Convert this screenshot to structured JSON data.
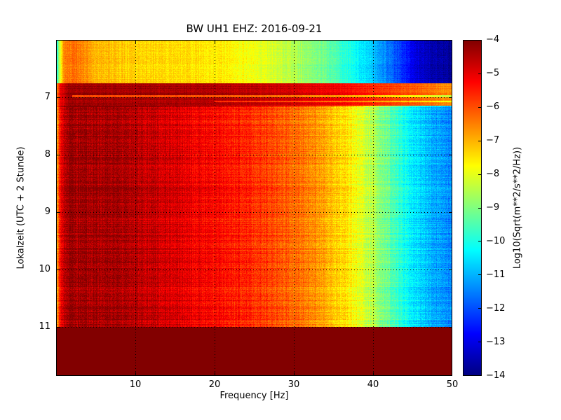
{
  "chart_data": {
    "type": "heatmap",
    "subtype": "seismic-spectrogram",
    "title": "BW UH1 EHZ: 2016-09-21",
    "xlabel": "Frequency [Hz]",
    "ylabel": "Lokalzeit (UTC + 2 Stunde)",
    "x_range": [
      0,
      50
    ],
    "x_ticks": [
      10,
      20,
      30,
      40,
      50
    ],
    "y_range": [
      6.0,
      11.85
    ],
    "y_ticks": [
      7,
      8,
      9,
      10,
      11
    ],
    "time_increases_downward": true,
    "grid_style": "dotted",
    "colormap": "jet",
    "colorbar": {
      "label": "Log10(Sqrt(m**2/s**2/Hz))",
      "min": -14,
      "max": -4,
      "ticks": [
        -4,
        -5,
        -6,
        -7,
        -8,
        -9,
        -10,
        -11,
        -12,
        -13,
        -14
      ]
    },
    "segments": [
      {
        "name": "pre-event-quiet",
        "t_start": 6.0,
        "t_end": 6.76,
        "psd_profile": [
          [
            0,
            -10.5
          ],
          [
            0.4,
            -8.5
          ],
          [
            1,
            -6.5
          ],
          [
            2.5,
            -6.3
          ],
          [
            5,
            -7.0
          ],
          [
            9,
            -7.3
          ],
          [
            15,
            -7.4
          ],
          [
            21,
            -7.6
          ],
          [
            26,
            -8.0
          ],
          [
            30,
            -8.5
          ],
          [
            34,
            -9.2
          ],
          [
            37,
            -10.0
          ],
          [
            40,
            -10.8
          ],
          [
            43,
            -12.0
          ],
          [
            45,
            -12.9
          ],
          [
            47,
            -13.5
          ],
          [
            50,
            -13.8
          ]
        ],
        "noise": {
          "row": 0.12,
          "col": 0.18,
          "px": 0.22
        }
      },
      {
        "name": "event-band",
        "t_start": 6.76,
        "t_end": 7.14,
        "psd_profile": [
          [
            0,
            -7.0
          ],
          [
            0.5,
            -5.2
          ],
          [
            1.5,
            -4.3
          ],
          [
            12,
            -4.35
          ],
          [
            22,
            -4.5
          ],
          [
            30,
            -4.8
          ],
          [
            36,
            -5.2
          ],
          [
            41,
            -5.7
          ],
          [
            46,
            -6.2
          ],
          [
            50,
            -6.7
          ]
        ],
        "noise": {
          "row": 0.18,
          "col": 0.12,
          "px": 0.18
        }
      },
      {
        "name": "main-daytime",
        "t_start": 7.14,
        "t_end": 11.0,
        "psd_profile": [
          [
            0,
            -7.5
          ],
          [
            0.3,
            -6.0
          ],
          [
            0.8,
            -4.8
          ],
          [
            1.5,
            -4.3
          ],
          [
            7,
            -4.35
          ],
          [
            11,
            -4.6
          ],
          [
            15,
            -4.9
          ],
          [
            19,
            -5.2
          ],
          [
            23,
            -5.5
          ],
          [
            27,
            -5.9
          ],
          [
            31,
            -6.4
          ],
          [
            34,
            -6.9
          ],
          [
            37,
            -7.6
          ],
          [
            40,
            -8.5
          ],
          [
            42,
            -9.3
          ],
          [
            44,
            -10.1
          ],
          [
            46,
            -10.7
          ],
          [
            48,
            -11.1
          ],
          [
            50,
            -11.5
          ]
        ],
        "noise": {
          "row": 0.28,
          "col": 0.22,
          "px": 0.3
        }
      },
      {
        "name": "no-data-clipped",
        "t_start": 11.0,
        "t_end": 11.85,
        "psd_profile": [
          [
            0,
            -4.02
          ],
          [
            50,
            -4.02
          ]
        ],
        "noise": {
          "row": 0,
          "col": 0,
          "px": 0
        }
      }
    ],
    "features": [
      {
        "type": "hline",
        "t": 6.985,
        "halfwidth": 0.02,
        "fmin": 2,
        "offset": -1.6
      },
      {
        "type": "hline",
        "t": 7.075,
        "halfwidth": 0.015,
        "fmin": 20,
        "offset": -1.1
      },
      {
        "type": "hline",
        "t": 7.16,
        "halfwidth": 0.012,
        "fmin": 0,
        "offset": 0.5
      }
    ]
  }
}
